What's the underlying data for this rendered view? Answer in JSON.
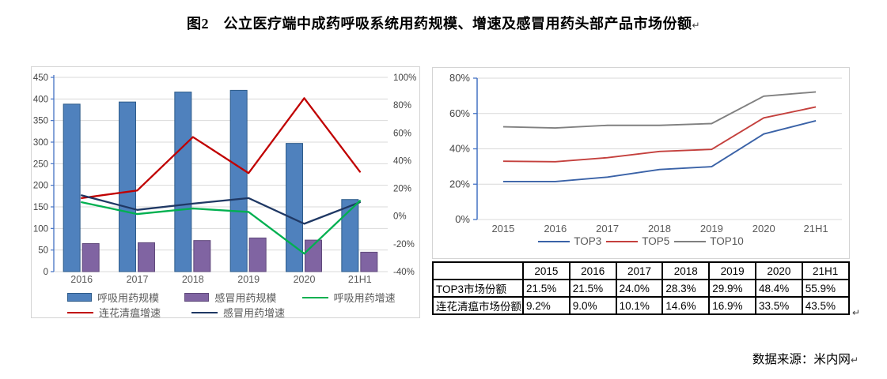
{
  "title": {
    "text": "图2　公立医疗端中成药呼吸系统用药规模、增速及感冒用药头部产品市场份额",
    "paragraph_mark": "↵"
  },
  "source": {
    "text": "数据来源：米内网",
    "paragraph_mark": "↵"
  },
  "table_paragraph_mark": "↵",
  "colors": {
    "bar_blue": "#4F81BD",
    "bar_blue_border": "#2E5C8A",
    "bar_purple": "#8064A2",
    "bar_purple_border": "#604A7B",
    "line_red": "#C00000",
    "line_navy": "#1F3864",
    "line_green": "#00B050",
    "top3_blue": "#3A62A7",
    "top5_red": "#C4403D",
    "top10_gray": "#808080",
    "axis_blue": "#4472C4",
    "gridline": "#d9d9d9",
    "tick_text": "#595959"
  },
  "chart_data": [
    {
      "type": "combo",
      "title": "公立医疗端中成药呼吸系统用药规模及增速",
      "categories": [
        "2016",
        "2017",
        "2018",
        "2019",
        "2020",
        "21H1"
      ],
      "bar_series": [
        {
          "name": "呼吸用药规模",
          "color": "#4F81BD",
          "border": "#2E5C8A",
          "axis": "left",
          "values": [
            388,
            393,
            416,
            420,
            297,
            167
          ]
        },
        {
          "name": "感冒用药规模",
          "color": "#8064A2",
          "border": "#604A7B",
          "axis": "left",
          "values": [
            65,
            67,
            72,
            78,
            73,
            45
          ]
        }
      ],
      "line_series": [
        {
          "name": "连花清瘟增速",
          "color": "#C00000",
          "axis": "right",
          "values": [
            13,
            18.5,
            57,
            31,
            85,
            32
          ]
        },
        {
          "name": "感冒用药增速",
          "color": "#1F3864",
          "axis": "right",
          "values": [
            15,
            4.5,
            9,
            13,
            -5.5,
            10
          ]
        },
        {
          "name": "呼吸用药增速",
          "color": "#00B050",
          "axis": "right",
          "values": [
            10,
            1.5,
            5.5,
            3,
            -27,
            11
          ]
        }
      ],
      "left_axis": {
        "min": 0,
        "max": 450,
        "step": 50,
        "suffix": ""
      },
      "right_axis": {
        "min": -40,
        "max": 100,
        "step": 20,
        "suffix": "%"
      },
      "grid": true,
      "legend_position": "bottom",
      "legend_rows": [
        [
          {
            "label": "呼吸用药规模",
            "swatch": "bar",
            "color": "#4F81BD",
            "border": "#2E5C8A"
          },
          {
            "label": "感冒用药规模",
            "swatch": "bar",
            "color": "#8064A2",
            "border": "#604A7B"
          },
          {
            "label": "呼吸用药增速",
            "swatch": "line",
            "color": "#00B050"
          }
        ],
        [
          {
            "label": "连花清瘟增速",
            "swatch": "line",
            "color": "#C00000"
          },
          {
            "label": "感冒用药增速",
            "swatch": "line",
            "color": "#1F3864"
          }
        ]
      ]
    },
    {
      "type": "line",
      "title": "感冒用药头部产品市场份额",
      "x": [
        "2015",
        "2016",
        "2017",
        "2018",
        "2019",
        "2020",
        "21H1"
      ],
      "series": [
        {
          "name": "TOP3",
          "color": "#3A62A7",
          "values": [
            21.5,
            21.5,
            24.0,
            28.3,
            29.9,
            48.4,
            55.9
          ]
        },
        {
          "name": "TOP5",
          "color": "#C4403D",
          "values": [
            33.0,
            32.7,
            35.0,
            38.5,
            39.7,
            57.5,
            63.7
          ]
        },
        {
          "name": "TOP10",
          "color": "#808080",
          "values": [
            52.5,
            51.8,
            53.3,
            53.3,
            54.3,
            69.8,
            72.2
          ]
        }
      ],
      "y_axis": {
        "min": 0,
        "max": 80,
        "step": 20,
        "suffix": "%"
      },
      "grid": true,
      "legend_position": "bottom",
      "legend": [
        {
          "label": "TOP3",
          "color": "#3A62A7"
        },
        {
          "label": "TOP5",
          "color": "#C4403D"
        },
        {
          "label": "TOP10",
          "color": "#808080"
        }
      ]
    },
    {
      "type": "table",
      "headers": [
        "",
        "2015",
        "2016",
        "2017",
        "2018",
        "2019",
        "2020",
        "21H1"
      ],
      "rows": [
        [
          "TOP3市场份额",
          "21.5%",
          "21.5%",
          "24.0%",
          "28.3%",
          "29.9%",
          "48.4%",
          "55.9%"
        ],
        [
          "连花清瘟市场份额",
          "9.2%",
          "9.0%",
          "10.1%",
          "14.6%",
          "16.9%",
          "33.5%",
          "43.5%"
        ]
      ]
    }
  ]
}
